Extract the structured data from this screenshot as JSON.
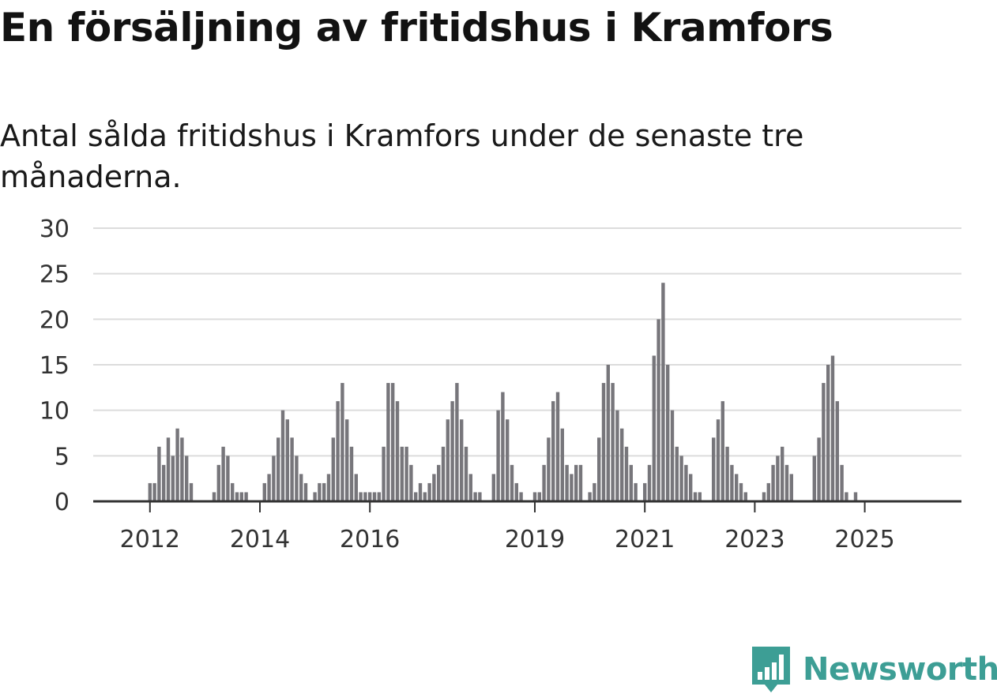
{
  "header": {
    "title": "En försäljning av fritidshus i Kramfors",
    "subtitle": "Antal sålda fritidshus i Kramfors under de senaste tre månaderna."
  },
  "brand": {
    "name": "Newsworthy",
    "icon": "newsworthy-logo-icon",
    "color": "#3d9e95"
  },
  "chart_data": {
    "type": "bar",
    "title": "En försäljning av fritidshus i Kramfors",
    "subtitle": "Antal sålda fritidshus i Kramfors under de senaste tre månaderna.",
    "xlabel": "",
    "ylabel": "",
    "ylim": [
      0,
      30
    ],
    "yticks": [
      0,
      5,
      10,
      15,
      20,
      25,
      30
    ],
    "xticks": [
      "2012",
      "2014",
      "2016",
      "2019",
      "2021",
      "2023",
      "2025"
    ],
    "grid": true,
    "legend": "none",
    "start": "2011-01",
    "frequency": "monthly",
    "bar_color": "#77767b",
    "highlight_color": "#3d9e95",
    "highlight_index": 168,
    "highlight_label": "1",
    "values": [
      0,
      0,
      0,
      0,
      0,
      0,
      0,
      0,
      0,
      0,
      0,
      0,
      2,
      2,
      6,
      4,
      7,
      5,
      8,
      7,
      5,
      2,
      0,
      0,
      0,
      0,
      1,
      4,
      6,
      5,
      2,
      1,
      1,
      1,
      0,
      0,
      0,
      2,
      3,
      5,
      7,
      10,
      9,
      7,
      5,
      3,
      2,
      0,
      1,
      2,
      2,
      3,
      7,
      11,
      13,
      9,
      6,
      3,
      1,
      1,
      1,
      1,
      1,
      6,
      13,
      13,
      11,
      6,
      6,
      4,
      1,
      2,
      1,
      2,
      3,
      4,
      6,
      9,
      11,
      13,
      9,
      6,
      3,
      1,
      1,
      0,
      0,
      3,
      10,
      12,
      9,
      4,
      2,
      1,
      0,
      0,
      1,
      1,
      4,
      7,
      11,
      12,
      8,
      4,
      3,
      4,
      4,
      0,
      1,
      2,
      7,
      13,
      15,
      13,
      10,
      8,
      6,
      4,
      2,
      0,
      2,
      4,
      16,
      20,
      24,
      15,
      10,
      6,
      5,
      4,
      3,
      1,
      1,
      0,
      0,
      7,
      9,
      11,
      6,
      4,
      3,
      2,
      1,
      0,
      0,
      0,
      1,
      2,
      4,
      5,
      6,
      4,
      3,
      0,
      0,
      0,
      0,
      5,
      7,
      13,
      15,
      16,
      11,
      4,
      1,
      0,
      1
    ]
  }
}
